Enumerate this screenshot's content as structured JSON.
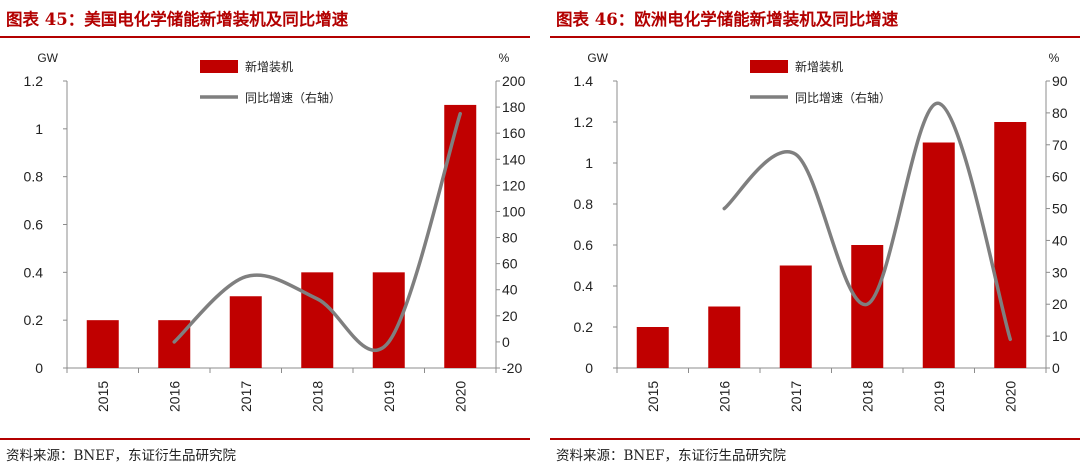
{
  "colors": {
    "accent": "#b30000",
    "bar": "#c00000",
    "line": "#7f7f7f"
  },
  "figures": [
    {
      "title": "图表 45：美国电化学储能新增装机及同比增速",
      "source": "资料来源：BNEF，东证衍生品研究院"
    },
    {
      "title": "图表 46：欧洲电化学储能新增装机及同比增速",
      "source": "资料来源：BNEF，东证衍生品研究院"
    }
  ],
  "chart_data": [
    {
      "type": "bar",
      "categories": [
        "2015",
        "2016",
        "2017",
        "2018",
        "2019",
        "2020"
      ],
      "series": [
        {
          "name": "新增装机",
          "type": "bar",
          "axis": "left",
          "values": [
            0.2,
            0.2,
            0.3,
            0.4,
            0.4,
            1.1
          ]
        },
        {
          "name": "同比增速（右轴）",
          "type": "line",
          "axis": "right",
          "values": [
            null,
            0,
            50,
            33,
            0,
            175
          ]
        }
      ],
      "left_axis": {
        "unit": "GW",
        "ylim": [
          0,
          1.2
        ],
        "ticks": [
          "0",
          "0.2",
          "0.4",
          "0.6",
          "0.8",
          "1",
          "1.2"
        ]
      },
      "right_axis": {
        "unit": "%",
        "ylim": [
          -20,
          200
        ],
        "ticks": [
          "-20",
          "0",
          "20",
          "40",
          "60",
          "80",
          "100",
          "120",
          "140",
          "160",
          "180",
          "200"
        ]
      },
      "legend_position": "top-center",
      "grid": false
    },
    {
      "type": "bar",
      "categories": [
        "2015",
        "2016",
        "2017",
        "2018",
        "2019",
        "2020"
      ],
      "series": [
        {
          "name": "新增装机",
          "type": "bar",
          "axis": "left",
          "values": [
            0.2,
            0.3,
            0.5,
            0.6,
            1.1,
            1.2
          ]
        },
        {
          "name": "同比增速（右轴）",
          "type": "line",
          "axis": "right",
          "values": [
            null,
            50,
            67,
            20,
            83,
            9
          ]
        }
      ],
      "left_axis": {
        "unit": "GW",
        "ylim": [
          0,
          1.4
        ],
        "ticks": [
          "0",
          "0.2",
          "0.4",
          "0.6",
          "0.8",
          "1",
          "1.2",
          "1.4"
        ]
      },
      "right_axis": {
        "unit": "%",
        "ylim": [
          0,
          90
        ],
        "ticks": [
          "0",
          "10",
          "20",
          "30",
          "40",
          "50",
          "60",
          "70",
          "80",
          "90"
        ]
      },
      "legend_position": "top-center",
      "grid": false
    }
  ]
}
